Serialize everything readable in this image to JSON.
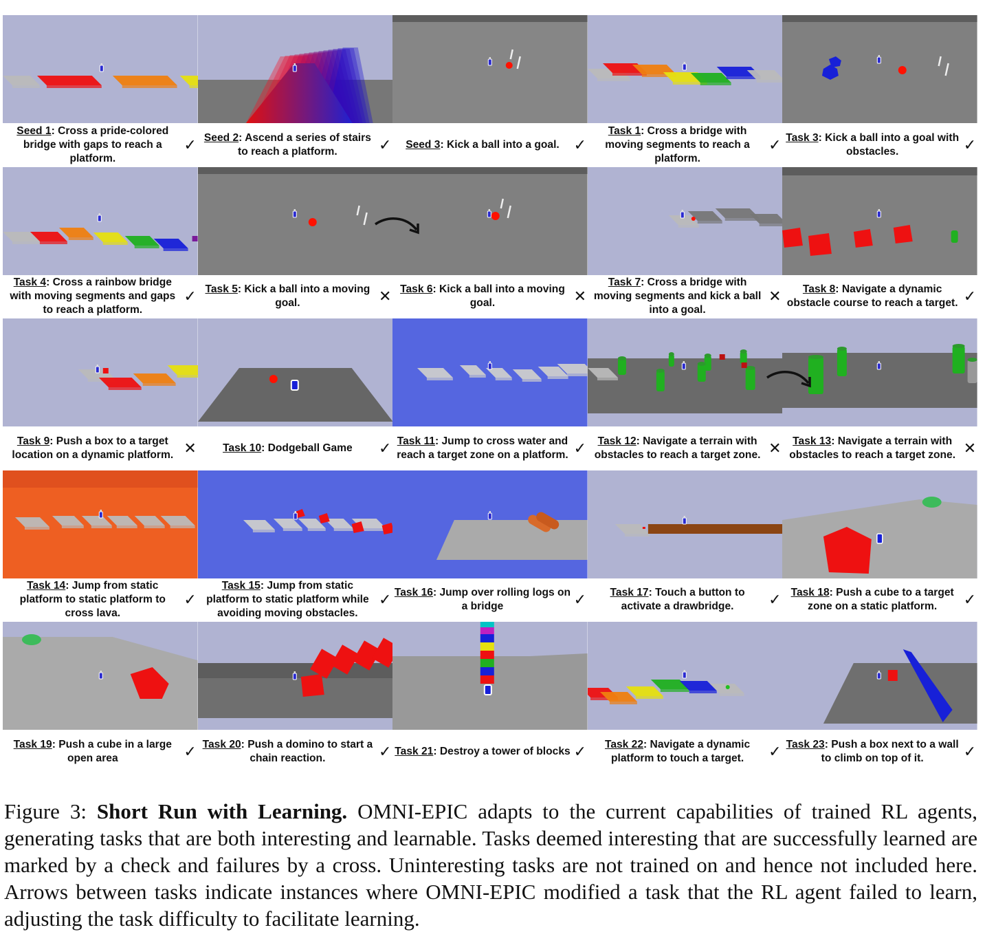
{
  "mark_symbols": {
    "check": "✓",
    "cross": "✕"
  },
  "colors": {
    "sky": "#b0b3d2",
    "ground": "#7c7c7c",
    "water": "#5566e0",
    "lava": "#ee5f22",
    "red": "#e11",
    "orange": "#ef7f10",
    "yellow": "#e6e010",
    "green": "#20b020",
    "blue": "#1720d8"
  },
  "cells": [
    {
      "id": "Seed 1",
      "text": ": Cross a pride-colored bridge with gaps to reach a platform.",
      "mark": "check",
      "scene": "pride-bridge"
    },
    {
      "id": "Seed 2",
      "text": ": Ascend a series of stairs to reach a platform.",
      "mark": "check",
      "scene": "stairs"
    },
    {
      "id": "Seed 3",
      "text": ": Kick a ball into a goal.",
      "mark": "check",
      "scene": "kick-ball"
    },
    {
      "id": "Task 1",
      "text": ": Cross a bridge with moving segments to reach a platform.",
      "mark": "check",
      "scene": "moving-bridge"
    },
    {
      "id": "Task 3",
      "text": ": Kick a ball into a goal with obstacles.",
      "mark": "check",
      "scene": "kick-obstacles"
    },
    {
      "id": "Task 4",
      "text": ": Cross a rainbow bridge with moving segments and gaps to reach a platform.",
      "mark": "check",
      "scene": "rainbow-bridge"
    },
    {
      "id": "Task 5",
      "text": ": Kick a ball into a moving goal.",
      "mark": "cross",
      "scene": "moving-goal-a"
    },
    {
      "id": "Task 6",
      "text": ": Kick a ball into a moving goal.",
      "mark": "cross",
      "scene": "moving-goal-b"
    },
    {
      "id": "Task 7",
      "text": ": Cross a bridge with moving segments and kick a ball into a goal.",
      "mark": "cross",
      "scene": "bridge-kick"
    },
    {
      "id": "Task 8",
      "text": ": Navigate a dynamic obstacle course to reach a target.",
      "mark": "check",
      "scene": "obstacle-course"
    },
    {
      "id": "Task 9",
      "text": ": Push a box to a target location on a dynamic platform.",
      "mark": "cross",
      "scene": "push-box-dynamic"
    },
    {
      "id": "Task 10",
      "text": ": Dodgeball Game",
      "mark": "check",
      "scene": "dodgeball"
    },
    {
      "id": "Task 11",
      "text": ": Jump to cross water and reach a target zone on a platform.",
      "mark": "check",
      "scene": "water-jump"
    },
    {
      "id": "Task 12",
      "text": ": Navigate a terrain with obstacles to reach a target zone.",
      "mark": "cross",
      "scene": "terrain-a"
    },
    {
      "id": "Task 13",
      "text": ": Navigate a terrain with obstacles to reach a target zone.",
      "mark": "cross",
      "scene": "terrain-b"
    },
    {
      "id": "Task 14",
      "text": ": Jump from static platform to static platform to cross lava.",
      "mark": "check",
      "scene": "lava"
    },
    {
      "id": "Task 15",
      "text": ": Jump from static platform to static platform while avoiding moving obstacles.",
      "mark": "check",
      "scene": "water-obstacles"
    },
    {
      "id": "Task 16",
      "text": ": Jump over rolling logs on a bridge",
      "mark": "check",
      "scene": "logs"
    },
    {
      "id": "Task 17",
      "text": ": Touch a button to activate a drawbridge.",
      "mark": "check",
      "scene": "drawbridge"
    },
    {
      "id": "Task 18",
      "text": ": Push a cube to a target zone on a static platform.",
      "mark": "check",
      "scene": "push-cube-platform"
    },
    {
      "id": "Task 19",
      "text": ": Push a cube in a large open area",
      "mark": "check",
      "scene": "push-cube-open"
    },
    {
      "id": "Task 20",
      "text": ": Push a domino to start a chain reaction.",
      "mark": "check",
      "scene": "dominoes"
    },
    {
      "id": "Task 21",
      "text": ": Destroy a tower of blocks",
      "mark": "check",
      "scene": "tower"
    },
    {
      "id": "Task 22",
      "text": ": Navigate a dynamic platform to touch a target.",
      "mark": "check",
      "scene": "dynamic-platform"
    },
    {
      "id": "Task 23",
      "text": ": Push a box next to a wall to climb on top of it.",
      "mark": "check",
      "scene": "wall-climb"
    }
  ],
  "caption": {
    "label": "Figure 3: ",
    "title": "Short Run with Learning.",
    "body": " OMNI-EPIC adapts to the current capabilities of trained RL agents, generating tasks that are both interesting and learnable. Tasks deemed interesting that are successfully learned are marked by a check and failures by a cross. Uninteresting tasks are not trained on and hence not included here. Arrows between tasks indicate instances where OMNI-EPIC modified a task that the RL agent failed to learn, adjusting the task difficulty to facilitate learning."
  }
}
